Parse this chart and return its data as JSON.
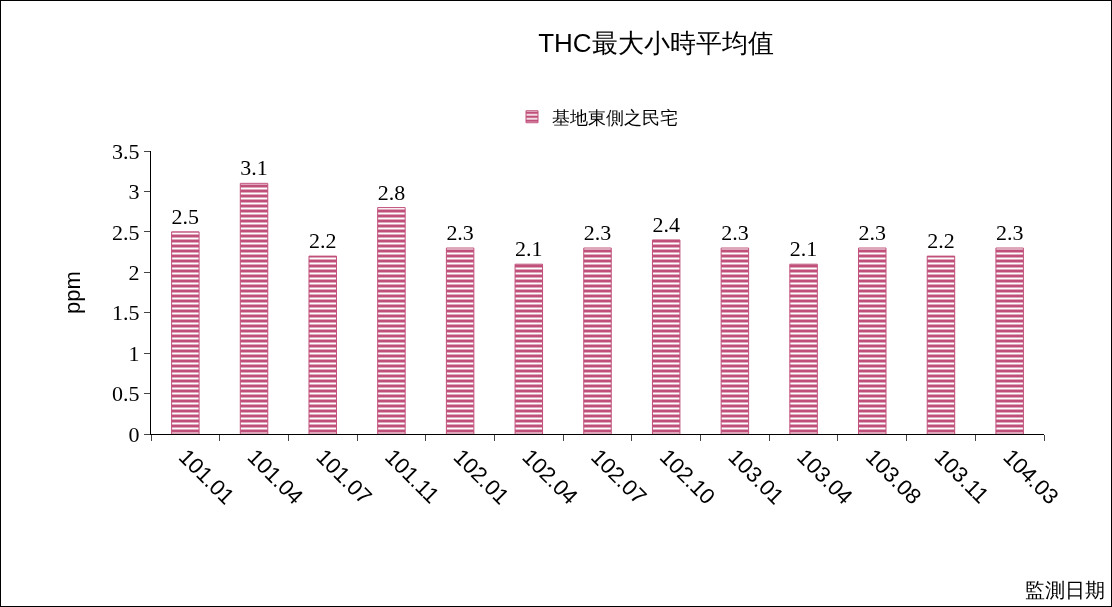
{
  "chart_data": {
    "type": "bar",
    "title": "THC最大小時平均值",
    "xlabel": "監測日期",
    "ylabel": "ppm",
    "categories": [
      "101.01",
      "101.04",
      "101.07",
      "101.11",
      "102.01",
      "102.04",
      "102.07",
      "102.10",
      "103.01",
      "103.04",
      "103.08",
      "103.11",
      "104.03"
    ],
    "series": [
      {
        "name": "基地東側之民宅",
        "color": "#c0507a",
        "values": [
          2.5,
          3.1,
          2.2,
          2.8,
          2.3,
          2.1,
          2.3,
          2.4,
          2.3,
          2.1,
          2.3,
          2.2,
          2.3
        ]
      }
    ],
    "ylim": [
      0,
      3.5
    ],
    "yticks": [
      0,
      0.5,
      1,
      1.5,
      2,
      2.5,
      3,
      3.5
    ],
    "grid": false,
    "legend": "top",
    "data_labels": true
  }
}
